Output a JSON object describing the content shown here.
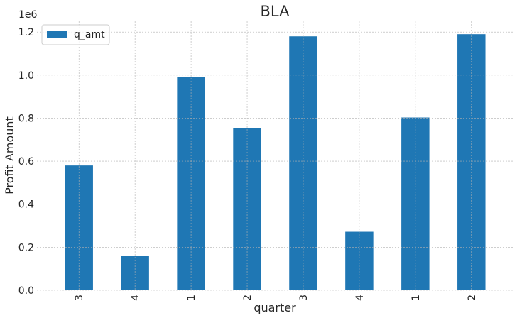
{
  "chart_data": {
    "type": "bar",
    "title": "BLA",
    "xlabel": "quarter",
    "ylabel": "Profit Amount",
    "offset_label": "1e6",
    "categories": [
      "3",
      "4",
      "1",
      "2",
      "3",
      "4",
      "1",
      "2"
    ],
    "series": [
      {
        "name": "q_amt",
        "values": [
          580000,
          160000,
          990000,
          755000,
          1180000,
          272000,
          803000,
          1190000
        ],
        "color": "#1f77b4"
      }
    ],
    "ylim": [
      0,
      1250000
    ],
    "yticks": [
      0,
      200000,
      400000,
      600000,
      800000,
      1000000,
      1200000
    ],
    "ytick_labels": [
      "0.0",
      "0.2",
      "0.4",
      "0.6",
      "0.8",
      "1.0",
      "1.2"
    ],
    "grid": true,
    "legend_position": "top-left"
  }
}
